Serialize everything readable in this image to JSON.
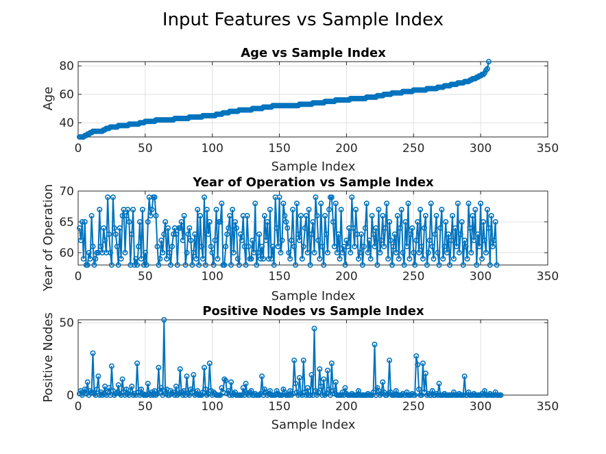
{
  "figure": {
    "title": "Input Features vs Sample Index"
  },
  "chart_data": [
    {
      "type": "line",
      "title": "Age vs Sample Index",
      "xlabel": "Sample Index",
      "ylabel": "Age",
      "xlim": [
        0,
        350
      ],
      "ylim": [
        30,
        83
      ],
      "xticks": [
        0,
        50,
        100,
        150,
        200,
        250,
        300,
        350
      ],
      "yticks": [
        40,
        60,
        80
      ],
      "grid": true,
      "marker": "circle",
      "color": "#0072BD",
      "y_anchor_points": [
        [
          1,
          30
        ],
        [
          3,
          30
        ],
        [
          8,
          32
        ],
        [
          10,
          33
        ],
        [
          12,
          34
        ],
        [
          17,
          34
        ],
        [
          20,
          35
        ],
        [
          22,
          36
        ],
        [
          26,
          37
        ],
        [
          33,
          38
        ],
        [
          43,
          39
        ],
        [
          48,
          40
        ],
        [
          52,
          41
        ],
        [
          63,
          42
        ],
        [
          80,
          43
        ],
        [
          85,
          44
        ],
        [
          100,
          45
        ],
        [
          105,
          46
        ],
        [
          110,
          47
        ],
        [
          115,
          48
        ],
        [
          125,
          49
        ],
        [
          135,
          50
        ],
        [
          140,
          51
        ],
        [
          150,
          52
        ],
        [
          160,
          52
        ],
        [
          170,
          53
        ],
        [
          180,
          54
        ],
        [
          195,
          56
        ],
        [
          210,
          57
        ],
        [
          220,
          58
        ],
        [
          230,
          60
        ],
        [
          245,
          62
        ],
        [
          255,
          63
        ],
        [
          265,
          64
        ],
        [
          275,
          66
        ],
        [
          285,
          68
        ],
        [
          290,
          69
        ],
        [
          295,
          71
        ],
        [
          300,
          73
        ],
        [
          303,
          75
        ],
        [
          305,
          78
        ],
        [
          306,
          83
        ]
      ]
    },
    {
      "type": "line",
      "title": "Year of Operation vs Sample Index",
      "xlabel": "Sample Index",
      "ylabel": "Year of Operation",
      "xlim": [
        0,
        350
      ],
      "ylim": [
        58,
        70
      ],
      "xticks": [
        0,
        50,
        100,
        150,
        200,
        250,
        300,
        350
      ],
      "yticks": [
        60,
        65,
        70
      ],
      "grid": true,
      "marker": "circle",
      "color": "#0072BD",
      "values": [
        64,
        62,
        65,
        59,
        65,
        58,
        58,
        60,
        59,
        66,
        61,
        58,
        59,
        60,
        60,
        67,
        61,
        60,
        64,
        62,
        60,
        69,
        63,
        60,
        58,
        69,
        64,
        63,
        61,
        58,
        64,
        59,
        66,
        67,
        60,
        66,
        67,
        65,
        58,
        63,
        67,
        58,
        59,
        58,
        61,
        65,
        59,
        67,
        58,
        60,
        58,
        65,
        69,
        66,
        67,
        69,
        69,
        66,
        61,
        58,
        59,
        62,
        60,
        63,
        65,
        59,
        64,
        60,
        58,
        61,
        63,
        64,
        63,
        58,
        64,
        64,
        65,
        62,
        66,
        58,
        60,
        63,
        64,
        62,
        58,
        60,
        63,
        59,
        67,
        58,
        66,
        61,
        59,
        69,
        58,
        67,
        63,
        65,
        61,
        60,
        58,
        62,
        67,
        59,
        65,
        65,
        68,
        58,
        58,
        61,
        63,
        64,
        66,
        58,
        67,
        60,
        65,
        64,
        59,
        58,
        63,
        62,
        66,
        61,
        58,
        66,
        61,
        59,
        59,
        62,
        60,
        68,
        58,
        60,
        63,
        59,
        61,
        59,
        66,
        62,
        65,
        59,
        67,
        59,
        61,
        58,
        69,
        64,
        61,
        69,
        60,
        62,
        68,
        66,
        65,
        64,
        60,
        59,
        62,
        67,
        61,
        58,
        68,
        63,
        62,
        66,
        59,
        61,
        64,
        66,
        60,
        67,
        58,
        63,
        65,
        60,
        69,
        66,
        62,
        59,
        68,
        61,
        58,
        66,
        63,
        60,
        67,
        69,
        69,
        65,
        61,
        68,
        60,
        63,
        59,
        67,
        60,
        61,
        58,
        62,
        61,
        64,
        60,
        69,
        64,
        61,
        67,
        63,
        59,
        60,
        63,
        58,
        61,
        64,
        68,
        60,
        62,
        59,
        66,
        63,
        61,
        64,
        58,
        67,
        60,
        62,
        66,
        61,
        64,
        68,
        59,
        65,
        62,
        58,
        61,
        63,
        60,
        66,
        59,
        64,
        67,
        60,
        58,
        65,
        61,
        68,
        59,
        63,
        64,
        60,
        58,
        62,
        65,
        60,
        67,
        61,
        59,
        64,
        66,
        58,
        60,
        62,
        68,
        61,
        59,
        63,
        66,
        60,
        58,
        64,
        67,
        59,
        61,
        65,
        60,
        63,
        58,
        62,
        66,
        59,
        64,
        61,
        68,
        60,
        63,
        65,
        58,
        62,
        61,
        59,
        68,
        64,
        60,
        66,
        62,
        67,
        58,
        63,
        61,
        68,
        59,
        65,
        62,
        60,
        67,
        64,
        58,
        66,
        61,
        62,
        65,
        58
      ]
    },
    {
      "type": "line",
      "title": "Positive Nodes vs Sample Index",
      "xlabel": "Sample Index",
      "ylabel": "Positive Nodes",
      "xlim": [
        0,
        350
      ],
      "ylim": [
        0,
        52
      ],
      "xticks": [
        0,
        50,
        100,
        150,
        200,
        250,
        300,
        350
      ],
      "yticks": [
        0,
        50
      ],
      "grid": true,
      "marker": "circle",
      "color": "#0072BD",
      "values": [
        1,
        3,
        0,
        2,
        4,
        1,
        9,
        0,
        3,
        2,
        29,
        1,
        0,
        4,
        13,
        0,
        2,
        0,
        1,
        6,
        0,
        2,
        5,
        0,
        20,
        3,
        0,
        1,
        2,
        7,
        1,
        0,
        11,
        2,
        0,
        4,
        1,
        0,
        3,
        6,
        0,
        1,
        0,
        22,
        2,
        0,
        4,
        1,
        0,
        0,
        0,
        8,
        1,
        0,
        2,
        0,
        3,
        0,
        1,
        19,
        2,
        5,
        0,
        52,
        1,
        4,
        0,
        0,
        3,
        1,
        2,
        0,
        6,
        0,
        1,
        18,
        2,
        0,
        3,
        0,
        13,
        1,
        0,
        4,
        2,
        14,
        0,
        1,
        3,
        0,
        0,
        0,
        2,
        19,
        4,
        0,
        1,
        22,
        3,
        0,
        2,
        1,
        0,
        0,
        0,
        0,
        5,
        2,
        11,
        10,
        1,
        3,
        0,
        9,
        0,
        1,
        2,
        0,
        0,
        0,
        0,
        0,
        5,
        0,
        8,
        1,
        0,
        2,
        3,
        0,
        0,
        1,
        0,
        0,
        0,
        1,
        13,
        0,
        4,
        2,
        0,
        1,
        3,
        0,
        0,
        0,
        0,
        3,
        1,
        0,
        0,
        0,
        4,
        2,
        0,
        0,
        0,
        3,
        0,
        1,
        24,
        8,
        2,
        0,
        12,
        1,
        0,
        24,
        2,
        0,
        5,
        0,
        0,
        14,
        0,
        46,
        3,
        0,
        2,
        18,
        6,
        0,
        11,
        0,
        1,
        17,
        4,
        0,
        22,
        3,
        1,
        9,
        0,
        0,
        0,
        0,
        2,
        0,
        5,
        1,
        0,
        0,
        0,
        1,
        0,
        0,
        0,
        0,
        3,
        0,
        0,
        0,
        0,
        0,
        0,
        1,
        0,
        0,
        0,
        2,
        35,
        0,
        5,
        3,
        0,
        1,
        9,
        2,
        0,
        0,
        1,
        24,
        2,
        0,
        0,
        0,
        3,
        0,
        0,
        0,
        0,
        1,
        0,
        0,
        2,
        0,
        0,
        0,
        1,
        0,
        0,
        27,
        21,
        4,
        0,
        0,
        22,
        2,
        15,
        0,
        1,
        0,
        0,
        3,
        0,
        0,
        1,
        0,
        8,
        0,
        0,
        0,
        1,
        0,
        0,
        0,
        0,
        0,
        0,
        2,
        0,
        0,
        0,
        1,
        0,
        0,
        0,
        13,
        0,
        0,
        2,
        0,
        0,
        0,
        1,
        0,
        0,
        0,
        0,
        0,
        1,
        0,
        3,
        0,
        0,
        0,
        1,
        0,
        0,
        0,
        2,
        0,
        0,
        0,
        0
      ]
    }
  ]
}
